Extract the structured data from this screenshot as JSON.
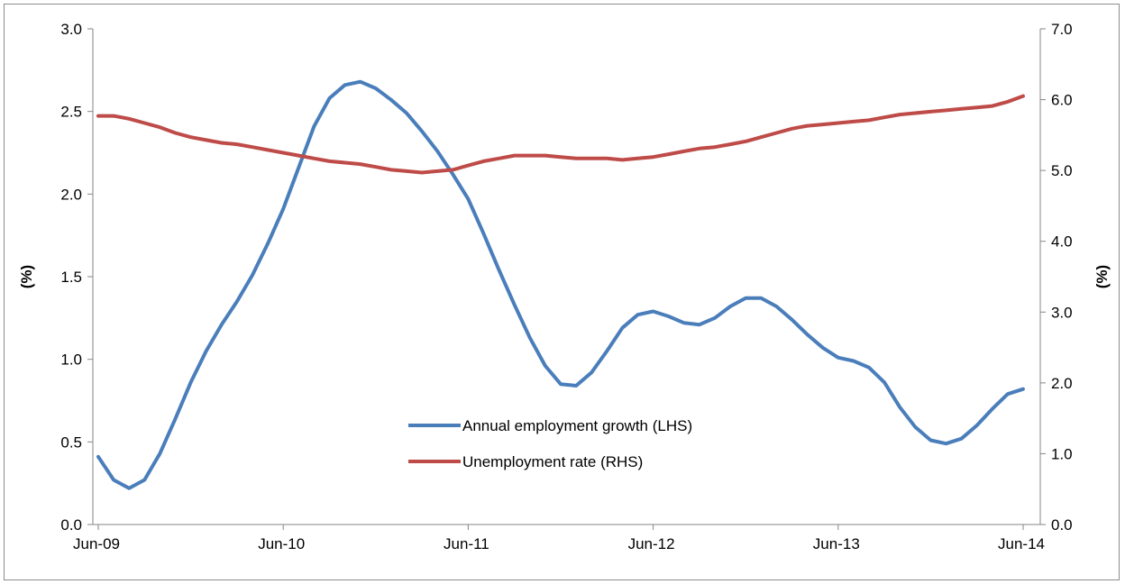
{
  "chart_data": {
    "type": "line",
    "title": "",
    "x_tick_labels": [
      "Jun-09",
      "Jun-10",
      "Jun-11",
      "Jun-12",
      "Jun-13",
      "Jun-14"
    ],
    "y_left": {
      "label": "(%)",
      "ylim": [
        0,
        3.0
      ],
      "tick_labels": [
        "0.0",
        "0.5",
        "1.0",
        "1.5",
        "2.0",
        "2.5",
        "3.0"
      ]
    },
    "y_right": {
      "label": "(%)",
      "ylim": [
        0,
        7.0
      ],
      "tick_labels": [
        "0.0",
        "1.0",
        "2.0",
        "3.0",
        "4.0",
        "5.0",
        "6.0",
        "7.0"
      ]
    },
    "grid": false,
    "legend_position": "lower-center",
    "series": [
      {
        "name": "Annual employment growth (LHS)",
        "axis": "left",
        "color": "#4a7ebb",
        "x": [
          "Jun-09",
          "Jul-09",
          "Aug-09",
          "Sep-09",
          "Oct-09",
          "Nov-09",
          "Dec-09",
          "Jan-10",
          "Feb-10",
          "Mar-10",
          "Apr-10",
          "May-10",
          "Jun-10",
          "Jul-10",
          "Aug-10",
          "Sep-10",
          "Oct-10",
          "Nov-10",
          "Dec-10",
          "Jan-11",
          "Feb-11",
          "Mar-11",
          "Apr-11",
          "May-11",
          "Jun-11",
          "Jul-11",
          "Aug-11",
          "Sep-11",
          "Oct-11",
          "Nov-11",
          "Dec-11",
          "Jan-12",
          "Feb-12",
          "Mar-12",
          "Apr-12",
          "May-12",
          "Jun-12",
          "Jul-12",
          "Aug-12",
          "Sep-12",
          "Oct-12",
          "Nov-12",
          "Dec-12",
          "Jan-13",
          "Feb-13",
          "Mar-13",
          "Apr-13",
          "May-13",
          "Jun-13",
          "Jul-13",
          "Aug-13",
          "Sep-13",
          "Oct-13",
          "Nov-13",
          "Dec-13",
          "Jan-14",
          "Feb-14",
          "Mar-14",
          "Apr-14",
          "May-14",
          "Jun-14"
        ],
        "values": [
          0.41,
          0.27,
          0.22,
          0.27,
          0.43,
          0.64,
          0.86,
          1.05,
          1.21,
          1.35,
          1.51,
          1.7,
          1.91,
          2.16,
          2.41,
          2.58,
          2.66,
          2.68,
          2.64,
          2.57,
          2.49,
          2.38,
          2.26,
          2.12,
          1.97,
          1.76,
          1.54,
          1.33,
          1.13,
          0.96,
          0.85,
          0.84,
          0.92,
          1.05,
          1.19,
          1.27,
          1.29,
          1.26,
          1.22,
          1.21,
          1.25,
          1.32,
          1.37,
          1.37,
          1.32,
          1.24,
          1.15,
          1.07,
          1.01,
          0.99,
          0.95,
          0.86,
          0.71,
          0.59,
          0.51,
          0.49,
          0.52,
          0.6,
          0.7,
          0.79,
          0.82
        ]
      },
      {
        "name": "Unemployment rate (RHS)",
        "axis": "right",
        "color": "#be4b48",
        "x": [
          "Jun-09",
          "Jul-09",
          "Aug-09",
          "Sep-09",
          "Oct-09",
          "Nov-09",
          "Dec-09",
          "Jan-10",
          "Feb-10",
          "Mar-10",
          "Apr-10",
          "May-10",
          "Jun-10",
          "Jul-10",
          "Aug-10",
          "Sep-10",
          "Oct-10",
          "Nov-10",
          "Dec-10",
          "Jan-11",
          "Feb-11",
          "Mar-11",
          "Apr-11",
          "May-11",
          "Jun-11",
          "Jul-11",
          "Aug-11",
          "Sep-11",
          "Oct-11",
          "Nov-11",
          "Dec-11",
          "Jan-12",
          "Feb-12",
          "Mar-12",
          "Apr-12",
          "May-12",
          "Jun-12",
          "Jul-12",
          "Aug-12",
          "Sep-12",
          "Oct-12",
          "Nov-12",
          "Dec-12",
          "Jan-13",
          "Feb-13",
          "Mar-13",
          "Apr-13",
          "May-13",
          "Jun-13",
          "Jul-13",
          "Aug-13",
          "Sep-13",
          "Oct-13",
          "Nov-13",
          "Dec-13",
          "Jan-14",
          "Feb-14",
          "Mar-14",
          "Apr-14",
          "May-14",
          "Jun-14"
        ],
        "values": [
          5.77,
          5.77,
          5.73,
          5.67,
          5.61,
          5.53,
          5.47,
          5.43,
          5.39,
          5.37,
          5.33,
          5.29,
          5.25,
          5.21,
          5.17,
          5.13,
          5.11,
          5.09,
          5.05,
          5.01,
          4.99,
          4.97,
          4.99,
          5.01,
          5.07,
          5.13,
          5.17,
          5.21,
          5.21,
          5.21,
          5.19,
          5.17,
          5.17,
          5.17,
          5.15,
          5.17,
          5.19,
          5.23,
          5.27,
          5.31,
          5.33,
          5.37,
          5.41,
          5.47,
          5.53,
          5.59,
          5.63,
          5.65,
          5.67,
          5.69,
          5.71,
          5.75,
          5.79,
          5.81,
          5.83,
          5.85,
          5.87,
          5.89,
          5.91,
          5.97,
          6.05
        ]
      }
    ]
  }
}
